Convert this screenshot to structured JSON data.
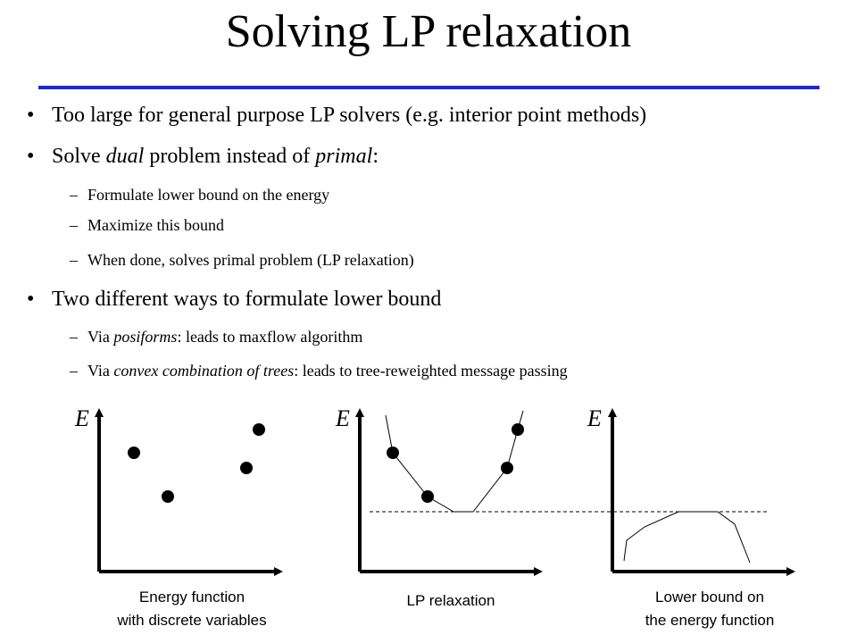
{
  "title": "Solving LP relaxation",
  "bullets": [
    {
      "text": "Too large for general purpose LP solvers (e.g. interior point methods)"
    },
    {
      "pre": "Solve ",
      "em1": "dual",
      "mid": " problem instead of ",
      "em2": "primal",
      "post": ":"
    },
    {
      "text": "Two different ways to formulate lower bound"
    }
  ],
  "sub1": [
    "Formulate lower bound on the energy",
    "Maximize this bound",
    "When done, solves primal problem (LP relaxation)"
  ],
  "sub2": [
    {
      "pre": "Via ",
      "em": "posiforms",
      "post": ": leads to maxflow algorithm"
    },
    {
      "pre": "Via ",
      "em": "convex combination of trees",
      "post": ": leads to tree-reweighted message passing"
    }
  ],
  "bullet_symbol": "•",
  "dash_symbol": "–",
  "plots": {
    "axis_label": "E",
    "captions": {
      "p1_line1": "Energy function",
      "p1_line2": "with discrete variables",
      "p2": "LP relaxation",
      "p3_line1": "Lower bound on",
      "p3_line2": "the energy function"
    }
  },
  "colors": {
    "rule": "#1a2ad8",
    "text": "#000000"
  }
}
